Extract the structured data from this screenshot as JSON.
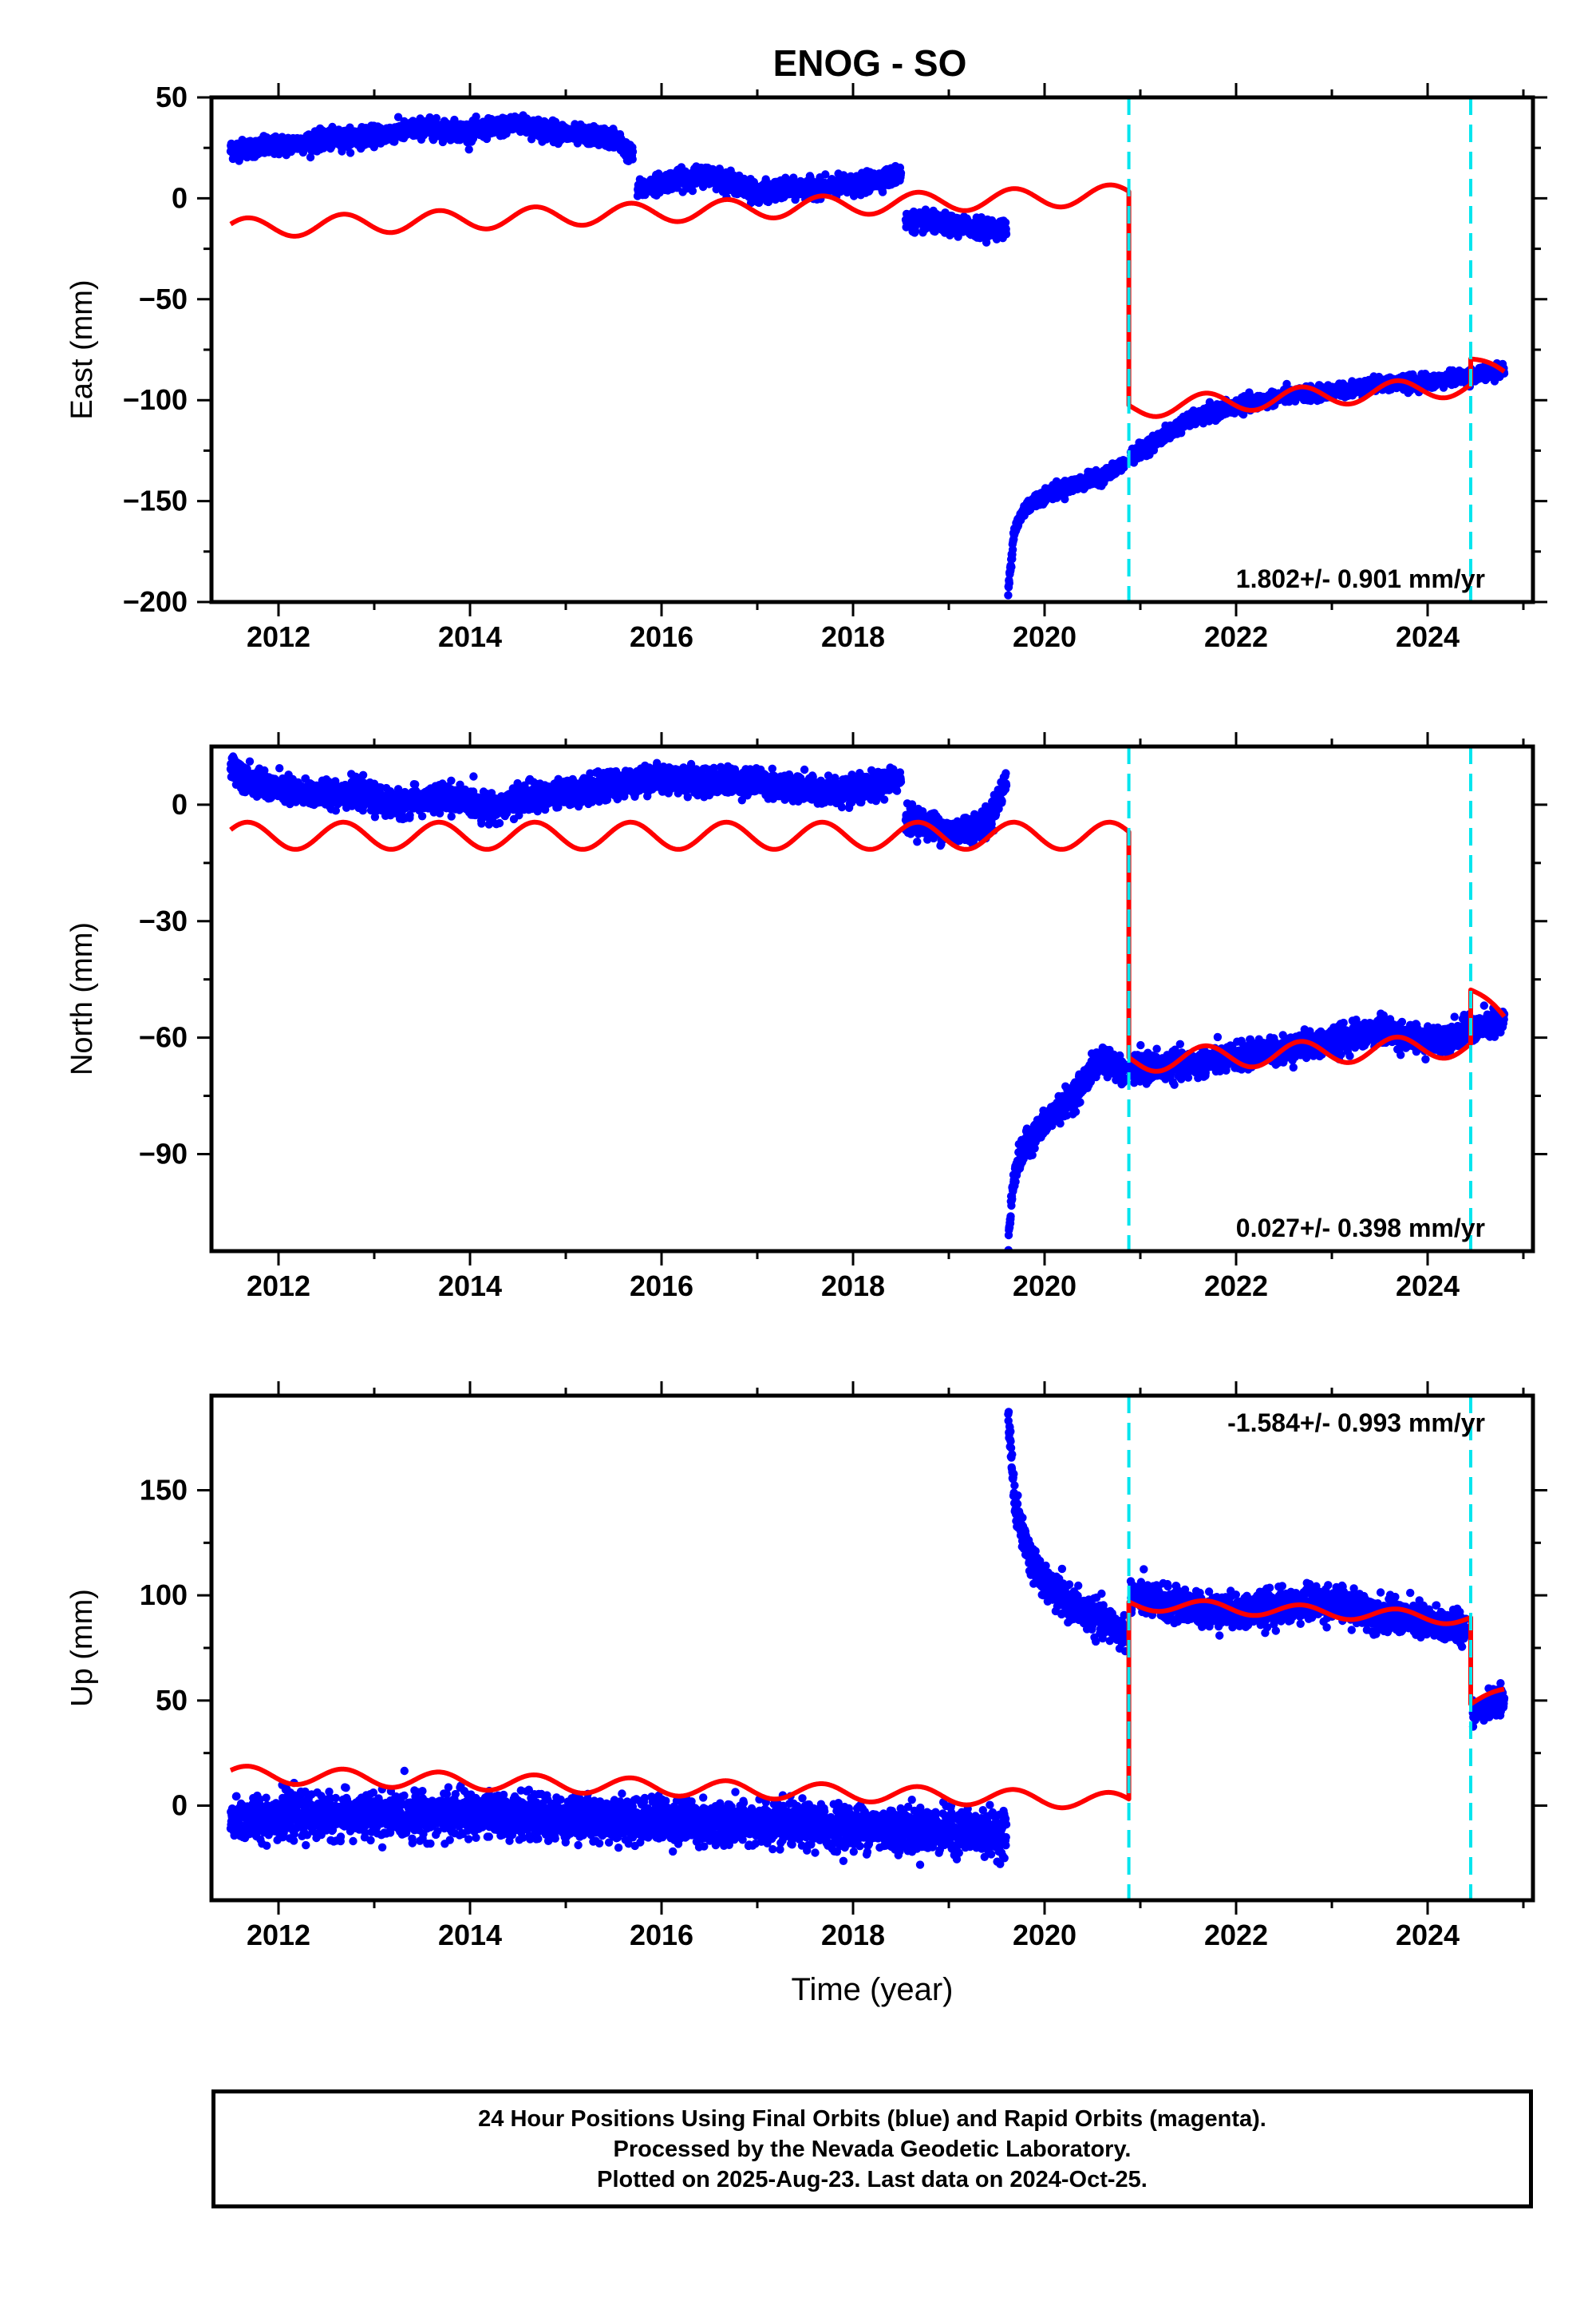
{
  "title": "ENOG - SO",
  "colors": {
    "data_points": "#0000ff",
    "model_line": "#ff0000",
    "offset_lines": "#00e5ee",
    "frame": "#000000"
  },
  "footer": {
    "line1": "24 Hour Positions Using Final Orbits (blue) and Rapid Orbits (magenta).",
    "line2": "Processed by the Nevada Geodetic Laboratory.",
    "line3": "Plotted on 2025-Aug-23. Last data on 2024-Oct-25."
  },
  "chart_data": [
    {
      "type": "scatter",
      "component": "East",
      "ylabel": "East (mm)",
      "xlabel": "",
      "xlim": [
        2011.3,
        2025.1
      ],
      "ylim": [
        -200,
        50
      ],
      "yticks": [
        50,
        0,
        -50,
        -100,
        -150,
        -200
      ],
      "xticks": [
        2012,
        2014,
        2016,
        2018,
        2020,
        2022,
        2024
      ],
      "rate_label": "1.802+/- 0.901 mm/yr",
      "rate_position": "bottom-right",
      "offset_lines_x": [
        2020.88,
        2024.45
      ],
      "observation_segments": [
        {
          "x": [
            2011.5,
            2012.0,
            2012.5,
            2013.0,
            2013.5,
            2014.0,
            2014.5,
            2015.0,
            2015.5,
            2015.7
          ],
          "y": [
            24,
            26,
            29,
            31,
            35,
            33,
            37,
            32,
            30,
            21
          ],
          "spread": 4
        },
        {
          "x": [
            2015.75,
            2016.0,
            2016.5,
            2017.0,
            2017.5,
            2018.0,
            2018.5
          ],
          "y": [
            4,
            8,
            12,
            3,
            5,
            6,
            12
          ],
          "spread": 4
        },
        {
          "x": [
            2018.55,
            2019.0,
            2019.5,
            2019.6
          ],
          "y": [
            -11,
            -13,
            -15,
            -16
          ],
          "spread": 4
        },
        {
          "x": [
            2019.62,
            2019.68,
            2019.8,
            2020.0,
            2020.3,
            2020.6,
            2020.85
          ],
          "y": [
            -195,
            -165,
            -153,
            -147,
            -142,
            -138,
            -131
          ],
          "spread": 3
        },
        {
          "x": [
            2020.9,
            2021.2,
            2021.5,
            2022.0,
            2022.5,
            2023.0,
            2023.5,
            2024.0,
            2024.45,
            2024.8
          ],
          "y": [
            -128,
            -119,
            -110,
            -103,
            -98,
            -96,
            -92,
            -91,
            -88,
            -85
          ],
          "spread": 3
        }
      ],
      "model_segments": [
        {
          "x0": 2011.5,
          "x1": 2020.88,
          "y0": -15,
          "y1": 2,
          "amp": 5,
          "phase": 3.6
        },
        {
          "x0": 2020.88,
          "x1": 2024.45,
          "y0": -104,
          "y1": -93,
          "amp": 5,
          "phase": 3.6
        },
        {
          "x0": 2024.45,
          "x1": 2024.8,
          "y0": -80,
          "y1": -88,
          "amp": 3,
          "phase": 3.6
        }
      ]
    },
    {
      "type": "scatter",
      "component": "North",
      "ylabel": "North (mm)",
      "xlabel": "",
      "xlim": [
        2011.3,
        2025.1
      ],
      "ylim": [
        -115,
        15
      ],
      "yticks": [
        0,
        -30,
        -60,
        -90
      ],
      "xticks": [
        2012,
        2014,
        2016,
        2018,
        2020,
        2022,
        2024
      ],
      "rate_label": "0.027+/- 0.398 mm/yr",
      "rate_position": "bottom-right",
      "offset_lines_x": [
        2020.88,
        2024.45
      ],
      "observation_segments": [
        {
          "x": [
            2011.5,
            2011.8,
            2012.2,
            2012.8,
            2013.2,
            2013.8,
            2014.2,
            2014.6,
            2015.0,
            2015.5,
            2016.0,
            2016.5,
            2017.0,
            2017.5,
            2018.0,
            2018.5
          ],
          "y": [
            10,
            5,
            3,
            3,
            0,
            2,
            -1,
            2,
            3,
            5,
            7,
            6,
            6,
            4,
            3,
            7
          ],
          "spread": 3
        },
        {
          "x": [
            2018.55,
            2019.0,
            2019.4,
            2019.6
          ],
          "y": [
            -3,
            -7,
            -5,
            6
          ],
          "spread": 3
        },
        {
          "x": [
            2019.62,
            2019.68,
            2019.8,
            2020.0,
            2020.3,
            2020.6,
            2020.85
          ],
          "y": [
            -113,
            -95,
            -88,
            -82,
            -75,
            -65,
            -70
          ],
          "spread": 3
        },
        {
          "x": [
            2020.9,
            2021.5,
            2022.0,
            2022.5,
            2023.0,
            2023.5,
            2024.0,
            2024.45,
            2024.8
          ],
          "y": [
            -68,
            -67,
            -65,
            -63,
            -61,
            -58,
            -61,
            -58,
            -56
          ],
          "spread": 3
        }
      ],
      "model_segments": [
        {
          "x0": 2011.5,
          "x1": 2020.88,
          "y0": -8,
          "y1": -8,
          "amp": 3.5,
          "phase": 3.6
        },
        {
          "x0": 2020.88,
          "x1": 2024.45,
          "y0": -66,
          "y1": -62,
          "amp": 3,
          "phase": 3.6
        },
        {
          "x0": 2024.45,
          "x1": 2024.8,
          "y0": -48,
          "y1": -56,
          "amp": 2,
          "phase": 3.6
        }
      ]
    },
    {
      "type": "scatter",
      "component": "Up",
      "ylabel": "Up (mm)",
      "xlabel": "Time (year)",
      "xlim": [
        2011.3,
        2025.1
      ],
      "ylim": [
        -45,
        195
      ],
      "yticks": [
        150,
        100,
        50,
        0
      ],
      "xticks": [
        2012,
        2014,
        2016,
        2018,
        2020,
        2022,
        2024
      ],
      "rate_label": "-1.584+/- 0.993 mm/yr",
      "rate_position": "top-right",
      "offset_lines_x": [
        2020.88,
        2024.45
      ],
      "observation_segments": [
        {
          "x": [
            2011.5,
            2012.0,
            2013.0,
            2014.0,
            2015.0,
            2016.0,
            2017.0,
            2018.0,
            2019.0,
            2019.6
          ],
          "y": [
            -7,
            -5,
            -5,
            -4,
            -6,
            -7,
            -9,
            -10,
            -12,
            -13
          ],
          "spread": 9
        },
        {
          "x": [
            2019.62,
            2019.7,
            2019.85,
            2020.0,
            2020.3,
            2020.6,
            2020.85
          ],
          "y": [
            185,
            140,
            118,
            105,
            95,
            88,
            82
          ],
          "spread": 7
        },
        {
          "x": [
            2020.9,
            2021.5,
            2022.0,
            2022.5,
            2023.0,
            2023.5,
            2024.0,
            2024.4
          ],
          "y": [
            100,
            94,
            92,
            95,
            97,
            91,
            87,
            85
          ],
          "spread": 7
        },
        {
          "x": [
            2024.47,
            2024.6,
            2024.8
          ],
          "y": [
            45,
            47,
            50
          ],
          "spread": 5
        }
      ],
      "model_segments": [
        {
          "x0": 2011.5,
          "x1": 2020.88,
          "y0": 15,
          "y1": 2,
          "amp": 4,
          "phase": 3.6
        },
        {
          "x0": 2020.88,
          "x1": 2024.45,
          "y0": 96,
          "y1": 89,
          "amp": 3,
          "phase": 3.6
        },
        {
          "x0": 2024.45,
          "x1": 2024.8,
          "y0": 48,
          "y1": 54,
          "amp": 2,
          "phase": 3.6
        }
      ]
    }
  ]
}
